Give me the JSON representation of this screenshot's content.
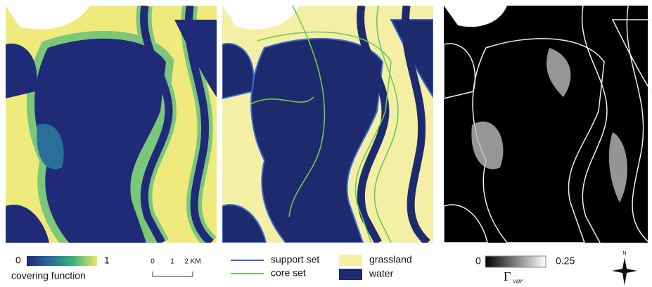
{
  "panels": [
    {
      "legend": {
        "min": "0",
        "max": "1",
        "label": "covering function"
      },
      "scale_bar": {
        "ticks": [
          "0",
          "1",
          "2 KM"
        ]
      }
    },
    {
      "legend": {
        "items": [
          "support set",
          "core set",
          "grassland",
          "water"
        ]
      }
    },
    {
      "legend": {
        "min": "0",
        "max": "0.25",
        "label": "Γ",
        "subscript": "var"
      },
      "compass": "N"
    }
  ]
}
